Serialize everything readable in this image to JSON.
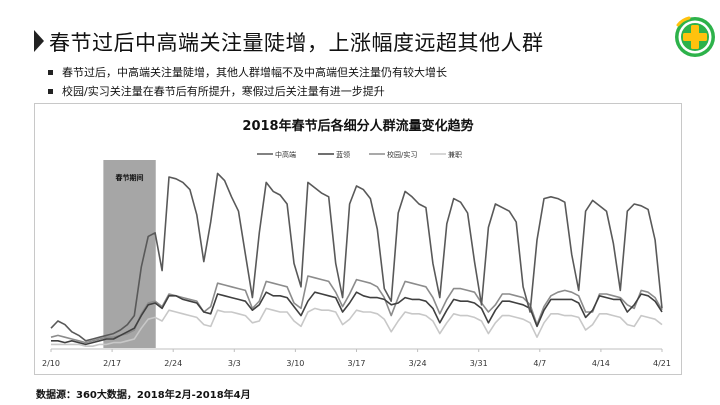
{
  "header": {
    "title": "春节过后中高端关注量陡增，上涨幅度远超其他人群",
    "bullets": [
      "春节过后，中高端关注量陡增，其他人群增幅不及中高端但关注量仍有较大增长",
      "校园/实习关注量在春节后有所提升，寒假过后关注量有进一步提升"
    ],
    "logo_icon": "360-logo-icon"
  },
  "footer": {
    "source": "数据源：360大数据，2018年2月-2018年4月"
  },
  "colors": {
    "mid_high": "#595959",
    "blue_collar": "#404040",
    "campus": "#8c8c8c",
    "part_time": "#c8c8c8",
    "holiday_band": "#a6a6a6",
    "logo_green": "#2db24a",
    "logo_yellow": "#ffc20e"
  },
  "chart_data": {
    "type": "line",
    "title": "2018年春节后各细分人群流量变化趋势",
    "x_ticks": [
      "2/10",
      "2/17",
      "2/24",
      "3/3",
      "3/10",
      "3/17",
      "3/24",
      "3/31",
      "4/7",
      "4/14",
      "4/21"
    ],
    "x_start": "2/10",
    "x_end": "4/21",
    "ylim": [
      0,
      100
    ],
    "y_axis_shown": false,
    "grid": false,
    "legend_position": "top",
    "annotation": {
      "label": "春节期间",
      "from": "2/16",
      "to": "2/22"
    },
    "series": [
      {
        "name": "中高端",
        "color": "#595959",
        "values": [
          11,
          15,
          13,
          9,
          7,
          4,
          5,
          6,
          7,
          8,
          10,
          13,
          18,
          45,
          62,
          64,
          43,
          95,
          94,
          92,
          88,
          74,
          48,
          70,
          97,
          93,
          84,
          76,
          52,
          28,
          64,
          92,
          87,
          85,
          80,
          47,
          34,
          92,
          89,
          86,
          84,
          47,
          28,
          80,
          90,
          88,
          83,
          66,
          33,
          26,
          75,
          87,
          84,
          80,
          78,
          47,
          28,
          69,
          83,
          81,
          75,
          48,
          24,
          67,
          80,
          78,
          76,
          70,
          34,
          20,
          60,
          83,
          84,
          83,
          81,
          52,
          32,
          76,
          82,
          79,
          76,
          58,
          32,
          76,
          80,
          79,
          77,
          60,
          22
        ]
      },
      {
        "name": "蓝领",
        "color": "#404040",
        "values": [
          4,
          4,
          3,
          4,
          3,
          2,
          3,
          4,
          5,
          5,
          7,
          9,
          11,
          18,
          24,
          25,
          22,
          29,
          29,
          27,
          26,
          25,
          20,
          19,
          30,
          29,
          28,
          27,
          26,
          21,
          24,
          31,
          29,
          29,
          28,
          23,
          18,
          26,
          31,
          30,
          29,
          28,
          20,
          25,
          31,
          29,
          28,
          28,
          27,
          24,
          25,
          28,
          27,
          27,
          26,
          22,
          14,
          21,
          27,
          26,
          26,
          25,
          22,
          14,
          21,
          26,
          26,
          25,
          24,
          22,
          12,
          21,
          27,
          27,
          27,
          27,
          25,
          17,
          21,
          29,
          28,
          27,
          27,
          20,
          24,
          30,
          29,
          26,
          20
        ]
      },
      {
        "name": "校园/实习",
        "color": "#8c8c8c",
        "values": [
          6,
          7,
          6,
          5,
          4,
          3,
          4,
          5,
          6,
          6,
          7,
          8,
          10,
          19,
          25,
          26,
          23,
          30,
          29,
          28,
          27,
          26,
          20,
          23,
          36,
          35,
          34,
          33,
          32,
          22,
          26,
          37,
          36,
          35,
          34,
          25,
          22,
          40,
          39,
          38,
          37,
          31,
          23,
          30,
          38,
          37,
          36,
          34,
          28,
          18,
          28,
          37,
          36,
          35,
          34,
          28,
          19,
          27,
          33,
          33,
          32,
          31,
          25,
          20,
          24,
          30,
          30,
          29,
          28,
          24,
          13,
          23,
          29,
          31,
          32,
          31,
          29,
          20,
          20,
          30,
          30,
          29,
          28,
          24,
          22,
          32,
          31,
          28,
          21
        ]
      },
      {
        "name": "兼职",
        "color": "#c8c8c8",
        "values": [
          2,
          2,
          2,
          2,
          2,
          1,
          1,
          2,
          2,
          3,
          3,
          4,
          5,
          11,
          16,
          17,
          15,
          21,
          20,
          19,
          18,
          17,
          13,
          12,
          21,
          20,
          20,
          19,
          18,
          14,
          15,
          22,
          21,
          20,
          20,
          15,
          12,
          20,
          22,
          21,
          21,
          20,
          13,
          16,
          21,
          20,
          20,
          19,
          16,
          9,
          15,
          20,
          19,
          19,
          18,
          15,
          8,
          14,
          19,
          18,
          18,
          17,
          15,
          8,
          14,
          18,
          18,
          17,
          16,
          14,
          6,
          14,
          19,
          19,
          18,
          18,
          17,
          10,
          13,
          19,
          19,
          18,
          17,
          13,
          12,
          18,
          17,
          16,
          13
        ]
      }
    ]
  }
}
